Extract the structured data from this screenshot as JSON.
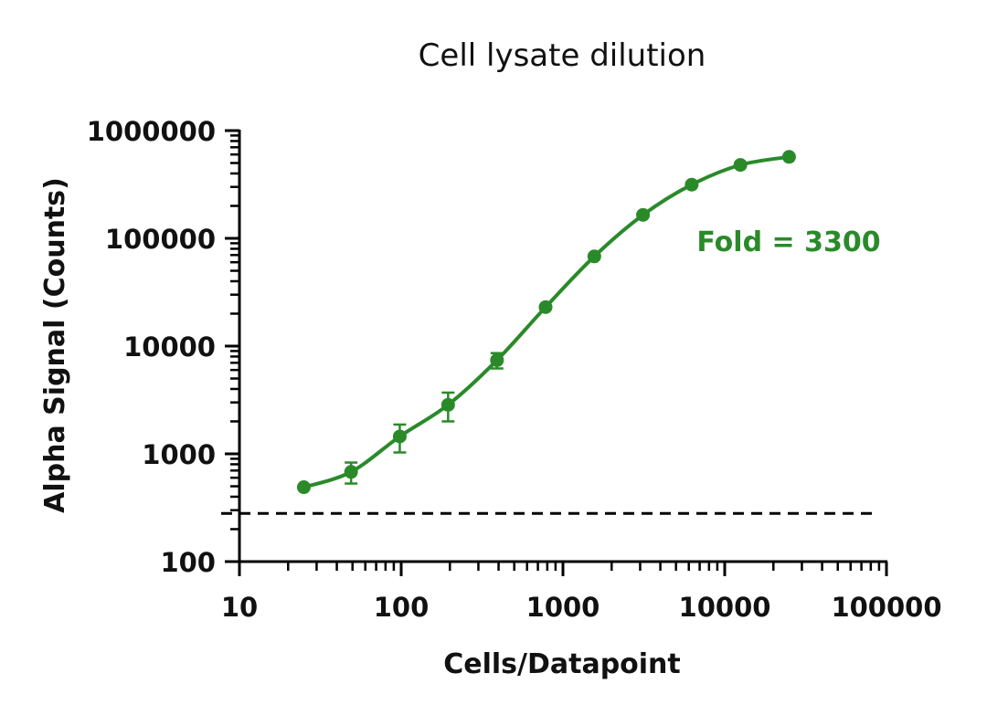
{
  "chart_data": {
    "type": "scatter",
    "title": "Cell lysate dilution",
    "xlabel": "Cells/Datapoint",
    "ylabel": "Alpha Signal (Counts)",
    "x_scale": "log",
    "y_scale": "log",
    "xlim": [
      10,
      100000
    ],
    "ylim": [
      100,
      1000000
    ],
    "x_ticks": [
      "10",
      "100",
      "1000",
      "10000",
      "100000"
    ],
    "y_ticks": [
      "100",
      "1000",
      "10000",
      "100000",
      "1000000"
    ],
    "grid": false,
    "color": "#2a8a2a",
    "series": [
      {
        "x": [
          25,
          49,
          98,
          195,
          391,
          781,
          1563,
          3125,
          6250,
          12500,
          25000
        ],
        "y": [
          490,
          680,
          1450,
          2850,
          7400,
          23000,
          68000,
          165000,
          315000,
          480000,
          570000
        ],
        "error": [
          20,
          150,
          420,
          850,
          1200,
          1200,
          3000,
          8000,
          10000,
          15000,
          15000
        ],
        "fit": "sigmoid"
      }
    ],
    "background_line": {
      "y": 280,
      "style": "dashed"
    },
    "annotation": "Fold = 3300"
  }
}
